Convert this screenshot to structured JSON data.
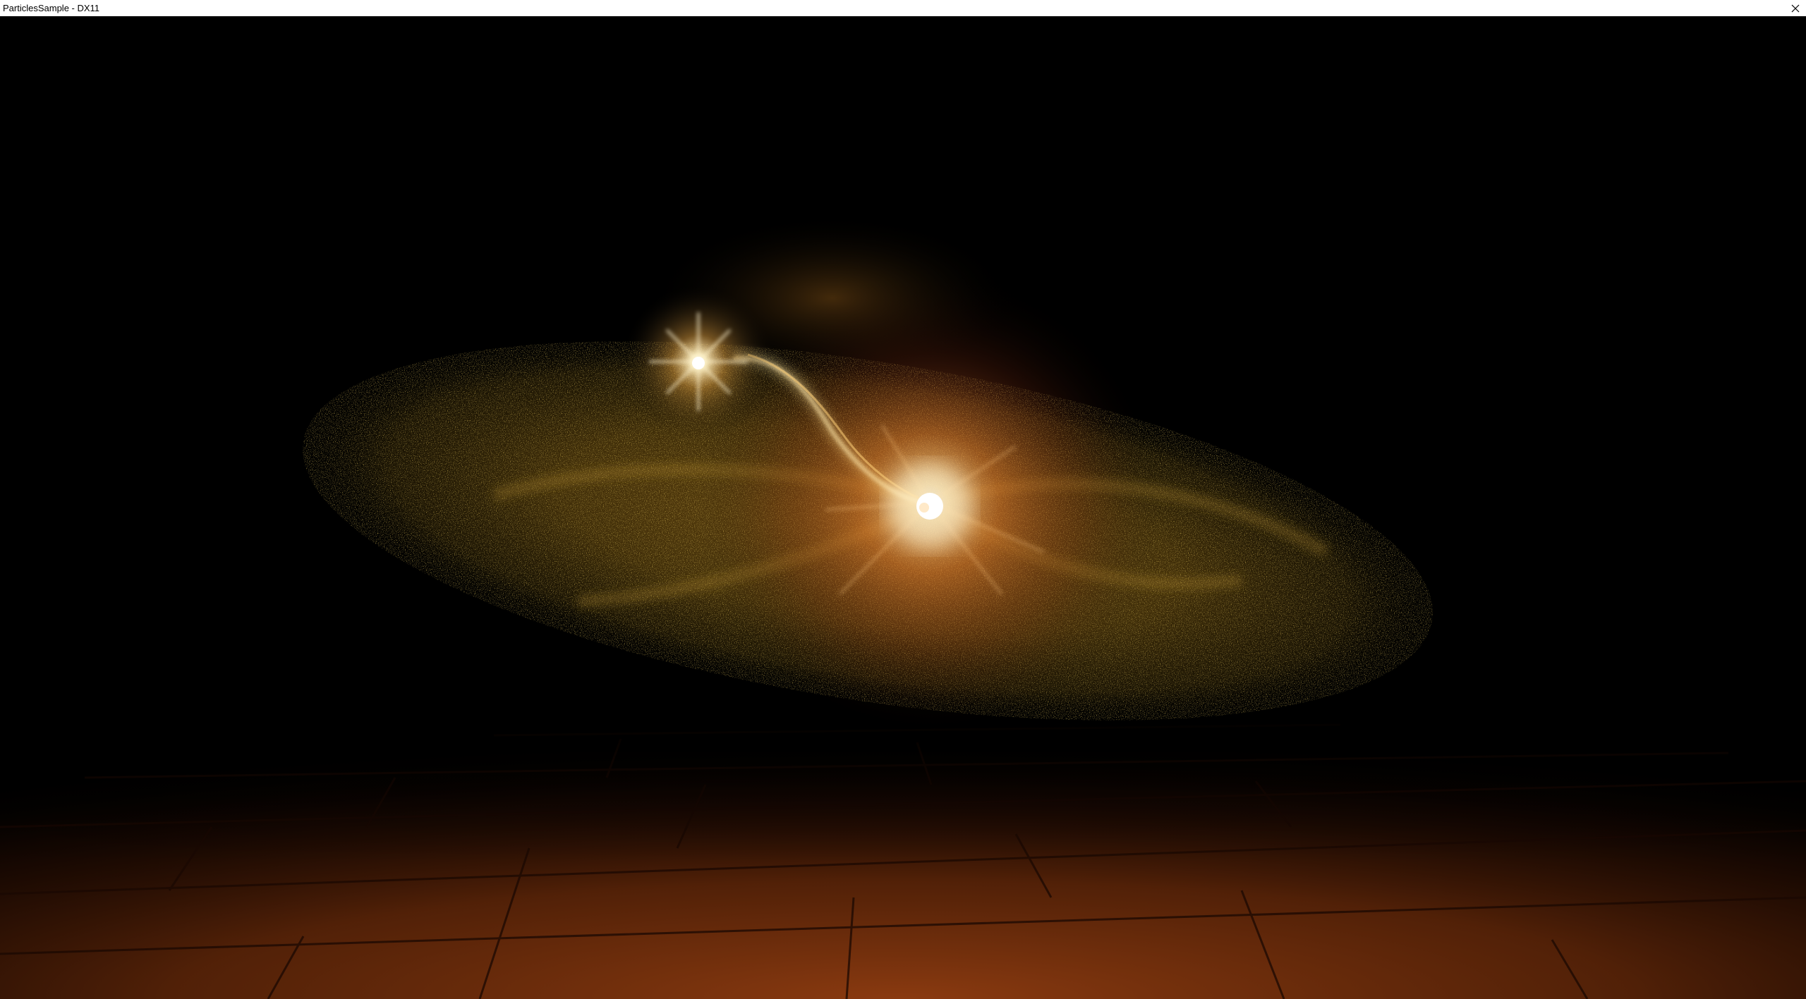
{
  "window": {
    "title": "ParticlesSample - DX11"
  },
  "icons": {
    "close": "close-icon"
  },
  "colors": {
    "background": "#000000",
    "particle_gold": "#b48a1c",
    "particle_orange": "#c85a14",
    "core_glow": "#ffe8b0",
    "floor_tile": "#7a3410"
  }
}
